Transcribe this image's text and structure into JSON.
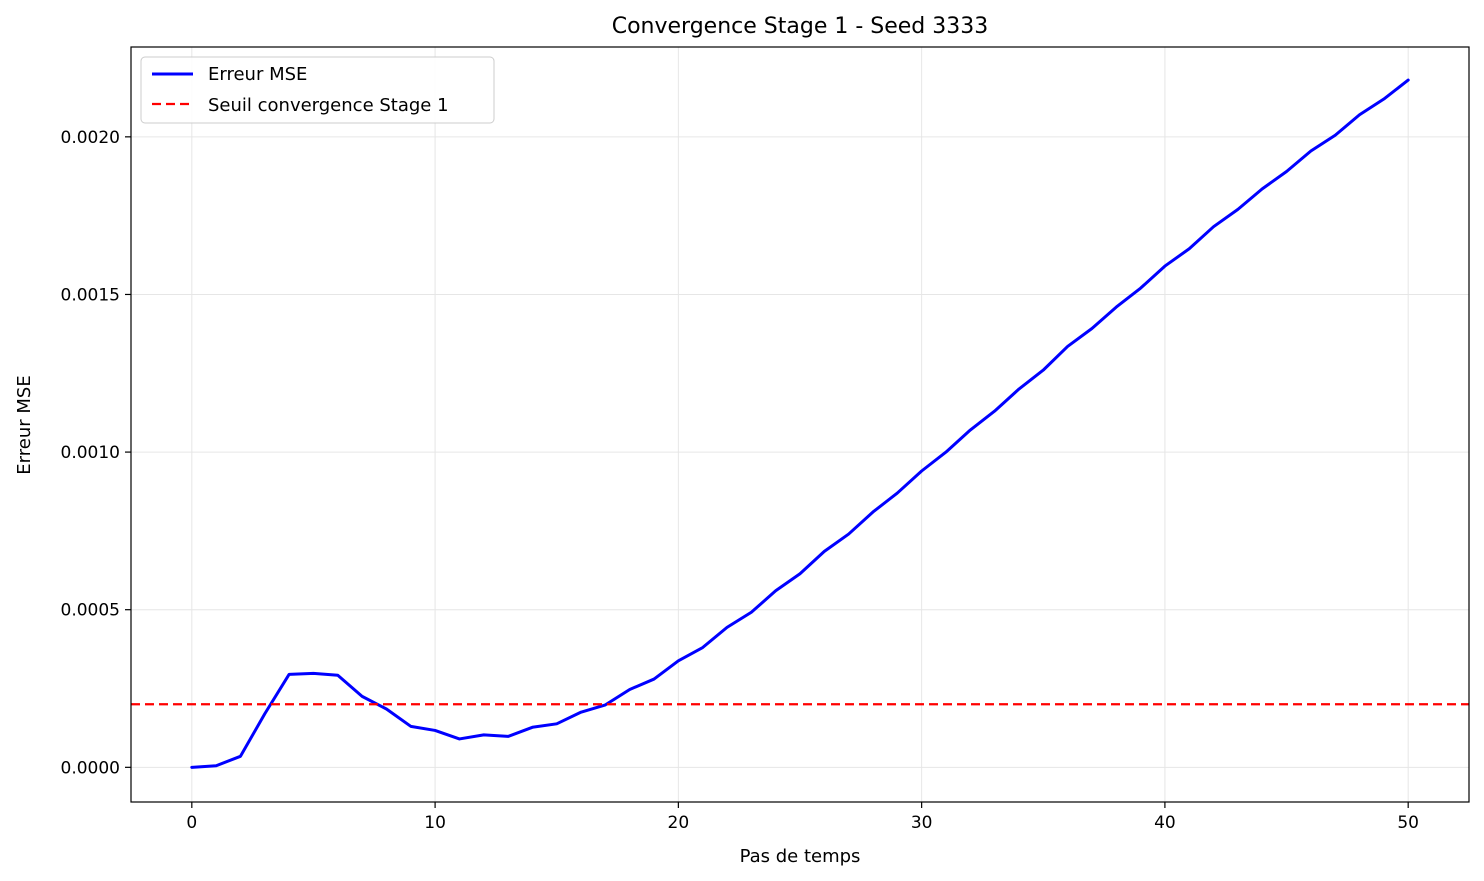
{
  "chart_data": {
    "type": "line",
    "title": "Convergence Stage 1 - Seed 3333",
    "xlabel": "Pas de temps",
    "ylabel": "Erreur MSE",
    "xlim": [
      -2.5,
      52.5
    ],
    "ylim": [
      -0.00011,
      0.002285
    ],
    "xticks": [
      0,
      10,
      20,
      30,
      40,
      50
    ],
    "xtick_labels": [
      "0",
      "10",
      "20",
      "30",
      "40",
      "50"
    ],
    "yticks": [
      0,
      0.0005,
      0.001,
      0.0015,
      0.002
    ],
    "ytick_labels": [
      "0.0000",
      "0.0005",
      "0.0010",
      "0.0015",
      "0.0020"
    ],
    "grid": true,
    "legend_position": "top-left",
    "series": [
      {
        "name": "Erreur MSE",
        "color": "#0000ff",
        "style": "solid",
        "x": [
          0,
          1,
          2,
          3,
          4,
          5,
          6,
          7,
          8,
          9,
          10,
          11,
          12,
          13,
          14,
          15,
          16,
          17,
          18,
          19,
          20,
          21,
          22,
          23,
          24,
          25,
          26,
          27,
          28,
          29,
          30,
          31,
          32,
          33,
          34,
          35,
          36,
          37,
          38,
          39,
          40,
          41,
          42,
          43,
          44,
          45,
          46,
          47,
          48,
          49,
          50
        ],
        "values": [
          0.0,
          5e-06,
          3.5e-05,
          0.00017,
          0.000295,
          0.000298,
          0.000292,
          0.000225,
          0.000185,
          0.00013,
          0.000117,
          9e-05,
          0.000103,
          9.8e-05,
          0.000127,
          0.000138,
          0.000175,
          0.000198,
          0.000247,
          0.00028,
          0.000338,
          0.00038,
          0.000444,
          0.000492,
          0.00056,
          0.000614,
          0.000685,
          0.00074,
          0.00081,
          0.00087,
          0.00094,
          0.001,
          0.00107,
          0.00113,
          0.0012,
          0.00126,
          0.001335,
          0.001392,
          0.00146,
          0.00152,
          0.00159,
          0.001645,
          0.001715,
          0.00177,
          0.001835,
          0.00189,
          0.001955,
          0.002005,
          0.00207,
          0.00212,
          0.00218
        ]
      },
      {
        "name": "Seuil convergence Stage 1",
        "color": "#ff0000",
        "style": "dashed",
        "hline": 0.0002
      }
    ]
  }
}
